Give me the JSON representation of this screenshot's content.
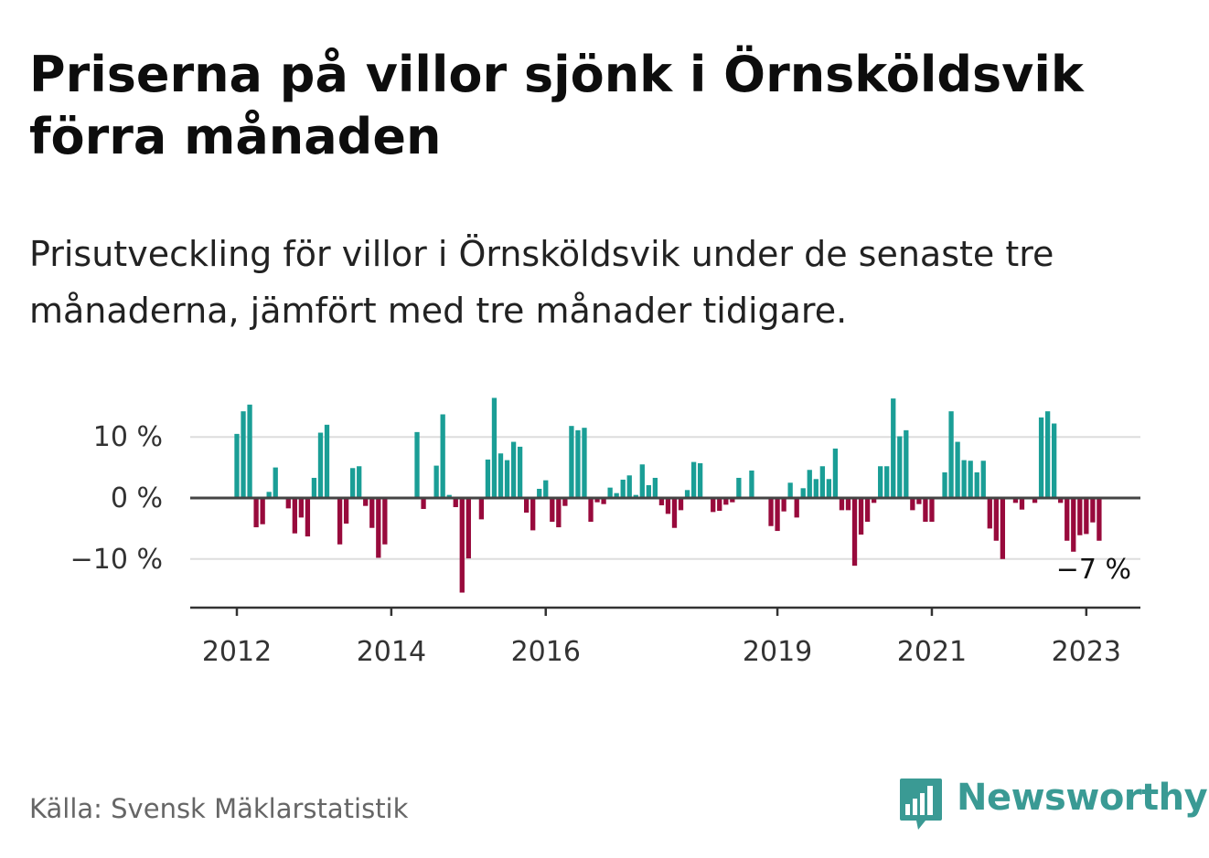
{
  "title": "Priserna på villor sjönk i Örnsköldsvik förra månaden",
  "subtitle": "Prisutveckling för villor i Örnsköldsvik under de senaste tre månaderna, jämfört med tre månader tidigare.",
  "source": "Källa: Svensk Mäklarstatistik",
  "brand": {
    "name": "Newsworthy",
    "icon": "newsworthy-bar-logo-icon",
    "color": "#3a9a94"
  },
  "colors": {
    "positive": "#1a9e96",
    "negative": "#980a3c",
    "zero_line": "#444444",
    "grid": "#dddddd"
  },
  "chart_data": {
    "type": "bar",
    "title": "",
    "xlabel": "",
    "ylabel": "",
    "ylim": [
      -18,
      17
    ],
    "y_ticks": [
      10,
      0,
      -10
    ],
    "y_tick_labels": [
      "10 %",
      "0 %",
      "−10 %"
    ],
    "x_tick_labels": [
      "2012",
      "2014",
      "2016",
      "2019",
      "2021",
      "2023"
    ],
    "x_tick_dates": [
      "2012-01",
      "2014-01",
      "2016-01",
      "2019-01",
      "2021-01",
      "2023-01"
    ],
    "grid": true,
    "last_value_label": "−7 %",
    "series": [
      {
        "start": "2012-01",
        "end": "2023-02",
        "unit": "%",
        "values": [
          10.5,
          14.2,
          15.3,
          -4.8,
          -4.3,
          1.0,
          5.0,
          0,
          -1.7,
          -5.8,
          -3.2,
          -6.3,
          3.3,
          10.7,
          12.0,
          0,
          -7.6,
          -4.2,
          4.9,
          5.2,
          -1.3,
          -4.9,
          -9.8,
          -7.6,
          0,
          0,
          0,
          0,
          10.8,
          -1.8,
          0,
          5.3,
          13.7,
          0.5,
          -1.5,
          -15.5,
          -9.9,
          0,
          -3.5,
          6.3,
          16.4,
          7.3,
          6.2,
          9.2,
          8.4,
          -2.4,
          -5.3,
          1.5,
          2.9,
          -3.9,
          -4.8,
          -1.3,
          11.8,
          11.1,
          11.5,
          -3.9,
          -0.7,
          -1.0,
          1.7,
          0.8,
          3.0,
          3.7,
          0.5,
          5.5,
          2.1,
          3.3,
          -1.2,
          -2.6,
          -4.9,
          -2.0,
          1.3,
          5.9,
          5.7,
          0,
          -2.3,
          -2.1,
          -1.1,
          -0.7,
          3.3,
          0,
          4.5,
          0,
          0,
          -4.6,
          -5.4,
          -2.2,
          2.5,
          -3.2,
          1.6,
          4.6,
          3.1,
          5.2,
          3.1,
          8.1,
          -2.0,
          -2.0,
          -11.1,
          -6.0,
          -3.9,
          -0.8,
          5.2,
          5.2,
          16.3,
          10.1,
          11.1,
          -2.0,
          -1.0,
          -3.9,
          -3.9,
          0,
          4.2,
          14.2,
          9.2,
          6.2,
          6.1,
          4.2,
          6.1,
          -5.0,
          -7.0,
          -10.0,
          0,
          -0.8,
          -1.9,
          0,
          -0.8,
          13.2,
          14.2,
          12.2,
          -0.8,
          -7.0,
          -8.8,
          -6.1,
          -5.9,
          -4.0,
          -7.0
        ]
      }
    ]
  }
}
